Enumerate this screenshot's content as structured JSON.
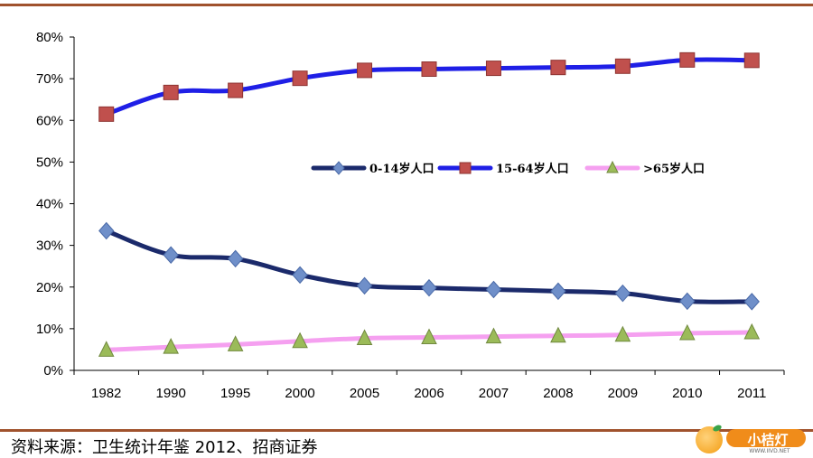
{
  "chart_data": {
    "type": "line",
    "title": "",
    "xlabel": "",
    "ylabel": "",
    "categories": [
      "1982",
      "1990",
      "1995",
      "2000",
      "2005",
      "2006",
      "2007",
      "2008",
      "2009",
      "2010",
      "2011"
    ],
    "ylim": [
      0,
      80
    ],
    "yticks": [
      0,
      10,
      20,
      30,
      40,
      50,
      60,
      70,
      80
    ],
    "ytick_labels": [
      "0%",
      "10%",
      "20%",
      "30%",
      "40%",
      "50%",
      "60%",
      "70%",
      "80%"
    ],
    "grid": false,
    "legend_position": "center",
    "series": [
      {
        "name": "0-14岁人口",
        "values": [
          33.5,
          27.7,
          26.8,
          22.9,
          20.3,
          19.8,
          19.4,
          19.0,
          18.5,
          16.6,
          16.5
        ],
        "line_color": "#1b2a6b",
        "marker": "diamond",
        "marker_color": "#6f8fc9"
      },
      {
        "name": "15-64岁人口",
        "values": [
          61.5,
          66.7,
          67.2,
          70.1,
          72.0,
          72.3,
          72.5,
          72.7,
          73.0,
          74.5,
          74.4
        ],
        "line_color": "#1f1fe6",
        "marker": "square",
        "marker_color": "#c0504d"
      },
      {
        "name": ">65岁人口",
        "values": [
          4.9,
          5.6,
          6.2,
          7.0,
          7.7,
          7.9,
          8.1,
          8.3,
          8.5,
          8.9,
          9.1
        ],
        "line_color": "#f5a0f0",
        "marker": "triangle",
        "marker_color": "#9bbb59"
      }
    ]
  },
  "footer": {
    "source": "资料来源：卫生统计年鉴 2012、招商证券",
    "logo_text": "小桔灯",
    "logo_site": "WWW.IIVD.NET"
  },
  "colors": {
    "rule": "#a0522d",
    "axis": "#000000"
  }
}
